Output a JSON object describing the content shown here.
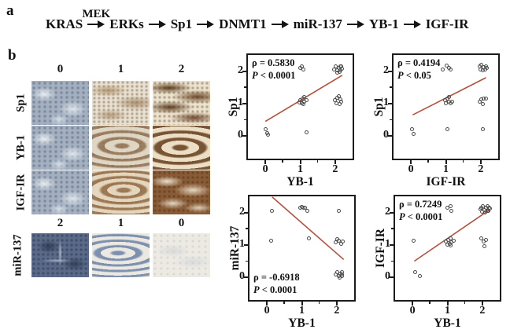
{
  "figure": {
    "panel_a_label": "a",
    "panel_b_label": "b"
  },
  "panel_a": {
    "pathway_nodes": [
      "KRAS",
      "ERKs",
      "Sp1",
      "DNMT1",
      "miR-137",
      "YB-1",
      "IGF-IR"
    ],
    "mek_annotation": "MEK"
  },
  "panel_b": {
    "ihc": {
      "top_scores": [
        "0",
        "1",
        "2"
      ],
      "mid_scores": [
        "2",
        "1",
        "0"
      ],
      "row_labels": [
        "Sp1",
        "YB-1",
        "IGF-IR",
        "miR-137"
      ]
    }
  },
  "colors": {
    "trend_line": "#b5503c",
    "point_outline": "#4a4a4a",
    "axis": "#1b1b1b"
  },
  "chart_data": [
    {
      "type": "scatter",
      "xlabel": "YB-1",
      "ylabel": "Sp1",
      "rho_label": "ρ = 0.5830",
      "p_symbol": "P",
      "p_rest": " < 0.0001",
      "stats_position": "top-left",
      "xlim": [
        -0.5,
        2.5
      ],
      "ylim": [
        -0.7,
        2.5
      ],
      "xticks": [
        0,
        1,
        2
      ],
      "yticks": [
        0,
        1,
        2
      ],
      "xminorticks": [
        0.5,
        1.5
      ],
      "yminorticks": [
        0.5,
        1.5
      ],
      "grid": false,
      "legend": "none",
      "trend_line": {
        "x1": 0.0,
        "y1": 0.45,
        "x2": 2.2,
        "y2": 1.87,
        "color": "#b5503c"
      },
      "points": [
        [
          0,
          0.2
        ],
        [
          0.05,
          0.08
        ],
        [
          0.08,
          0.04
        ],
        [
          1.0,
          2.1
        ],
        [
          1.05,
          2.16
        ],
        [
          1.1,
          2.04
        ],
        [
          1.0,
          1.1
        ],
        [
          1.06,
          1.16
        ],
        [
          1.12,
          1.2
        ],
        [
          0.98,
          1.04
        ],
        [
          1.05,
          1.02
        ],
        [
          1.12,
          1.06
        ],
        [
          1.18,
          1.1
        ],
        [
          1.08,
          0.98
        ],
        [
          1.18,
          0.12
        ],
        [
          1.98,
          2.06
        ],
        [
          2.02,
          2.14
        ],
        [
          2.06,
          2.02
        ],
        [
          2.1,
          2.1
        ],
        [
          2.14,
          2.16
        ],
        [
          2.16,
          2.02
        ],
        [
          2.2,
          2.08
        ],
        [
          2.05,
          1.95
        ],
        [
          2.12,
          1.98
        ],
        [
          2.18,
          2.14
        ],
        [
          2.0,
          1.1
        ],
        [
          2.05,
          1.18
        ],
        [
          2.1,
          1.22
        ],
        [
          2.14,
          1.12
        ],
        [
          2.18,
          1.05
        ],
        [
          2.04,
          1.0
        ],
        [
          2.12,
          0.98
        ]
      ]
    },
    {
      "type": "scatter",
      "xlabel": "IGF-IR",
      "ylabel": "Sp1",
      "rho_label": "ρ = 0.4194",
      "p_symbol": "P",
      "p_rest": " < 0.05",
      "stats_position": "top-left",
      "xlim": [
        -0.5,
        2.5
      ],
      "ylim": [
        -0.7,
        2.5
      ],
      "xticks": [
        0,
        1,
        2
      ],
      "yticks": [
        0,
        1,
        2
      ],
      "xminorticks": [
        0.5,
        1.5
      ],
      "yminorticks": [
        0.5,
        1.5
      ],
      "grid": false,
      "legend": "none",
      "trend_line": {
        "x1": 0.05,
        "y1": 0.65,
        "x2": 2.15,
        "y2": 1.8,
        "color": "#b5503c"
      },
      "points": [
        [
          0.02,
          0.2
        ],
        [
          0.08,
          0.07
        ],
        [
          0.9,
          2.05
        ],
        [
          1.02,
          2.18
        ],
        [
          1.08,
          2.1
        ],
        [
          1.14,
          2.05
        ],
        [
          0.98,
          1.1
        ],
        [
          1.04,
          1.16
        ],
        [
          1.1,
          1.2
        ],
        [
          1.0,
          1.02
        ],
        [
          1.08,
          1.05
        ],
        [
          1.14,
          1.0
        ],
        [
          1.18,
          1.06
        ],
        [
          1.04,
          0.2
        ],
        [
          1.96,
          2.16
        ],
        [
          2.02,
          2.2
        ],
        [
          2.08,
          2.12
        ],
        [
          2.14,
          2.16
        ],
        [
          2.0,
          2.04
        ],
        [
          2.06,
          2.02
        ],
        [
          2.12,
          2.05
        ],
        [
          2.18,
          2.1
        ],
        [
          1.96,
          1.05
        ],
        [
          2.02,
          1.12
        ],
        [
          2.08,
          1.16
        ],
        [
          2.14,
          1.16
        ],
        [
          2.05,
          0.98
        ],
        [
          2.05,
          0.2
        ]
      ]
    },
    {
      "type": "scatter",
      "xlabel": "YB-1",
      "ylabel": "miR-137",
      "rho_label": "ρ = -0.6918",
      "p_symbol": "P",
      "p_rest": " < 0.0001",
      "stats_position": "bottom-left",
      "xlim": [
        -0.5,
        2.5
      ],
      "ylim": [
        -0.7,
        2.5
      ],
      "xticks": [
        0,
        1,
        2
      ],
      "yticks": [
        0,
        1,
        2
      ],
      "xminorticks": [
        0.5,
        1.5
      ],
      "yminorticks": [
        0.5,
        1.5
      ],
      "grid": false,
      "legend": "none",
      "trend_line": {
        "x1": 0.15,
        "y1": 2.48,
        "x2": 2.2,
        "y2": 0.55,
        "color": "#b5503c"
      },
      "points": [
        [
          0.15,
          2.04
        ],
        [
          0.12,
          1.12
        ],
        [
          0.95,
          2.16
        ],
        [
          1.0,
          2.18
        ],
        [
          1.04,
          2.14
        ],
        [
          1.08,
          2.16
        ],
        [
          1.16,
          2.04
        ],
        [
          1.2,
          1.2
        ],
        [
          2.06,
          2.04
        ],
        [
          1.96,
          1.08
        ],
        [
          2.02,
          1.18
        ],
        [
          2.06,
          1.14
        ],
        [
          2.12,
          1.04
        ],
        [
          2.18,
          1.1
        ],
        [
          1.98,
          0.1
        ],
        [
          2.02,
          0.16
        ],
        [
          2.06,
          0.05
        ],
        [
          2.1,
          0.12
        ],
        [
          2.14,
          0.16
        ],
        [
          2.16,
          0.04
        ],
        [
          2.08,
          0.0
        ],
        [
          2.14,
          0.08
        ]
      ]
    },
    {
      "type": "scatter",
      "xlabel": "YB-1",
      "ylabel": "IGF-IR",
      "rho_label": "ρ = 0.7249",
      "p_symbol": "P",
      "p_rest": " < 0.0001",
      "stats_position": "top-left",
      "xlim": [
        -0.5,
        2.5
      ],
      "ylim": [
        -0.7,
        2.5
      ],
      "xticks": [
        0,
        1,
        2
      ],
      "yticks": [
        0,
        1,
        2
      ],
      "xminorticks": [
        0.5,
        1.5
      ],
      "yminorticks": [
        0.5,
        1.5
      ],
      "grid": false,
      "legend": "none",
      "trend_line": {
        "x1": 0.05,
        "y1": 0.5,
        "x2": 2.2,
        "y2": 2.08,
        "color": "#b5503c"
      },
      "points": [
        [
          0.04,
          1.12
        ],
        [
          0.08,
          0.15
        ],
        [
          0.22,
          0.03
        ],
        [
          1.0,
          2.14
        ],
        [
          1.08,
          2.2
        ],
        [
          1.12,
          2.06
        ],
        [
          0.96,
          1.1
        ],
        [
          1.02,
          1.16
        ],
        [
          1.08,
          1.2
        ],
        [
          1.0,
          1.02
        ],
        [
          1.06,
          1.04
        ],
        [
          1.12,
          1.08
        ],
        [
          1.18,
          1.12
        ],
        [
          1.08,
          0.98
        ],
        [
          1.94,
          2.1
        ],
        [
          1.98,
          2.16
        ],
        [
          2.02,
          2.2
        ],
        [
          2.06,
          2.08
        ],
        [
          2.1,
          2.14
        ],
        [
          2.14,
          2.2
        ],
        [
          2.18,
          2.06
        ],
        [
          2.22,
          2.12
        ],
        [
          2.0,
          2.02
        ],
        [
          2.08,
          2.0
        ],
        [
          2.14,
          2.04
        ],
        [
          2.2,
          2.16
        ],
        [
          1.98,
          1.2
        ],
        [
          2.04,
          1.1
        ],
        [
          2.1,
          1.16
        ],
        [
          2.06,
          0.96
        ]
      ]
    }
  ]
}
